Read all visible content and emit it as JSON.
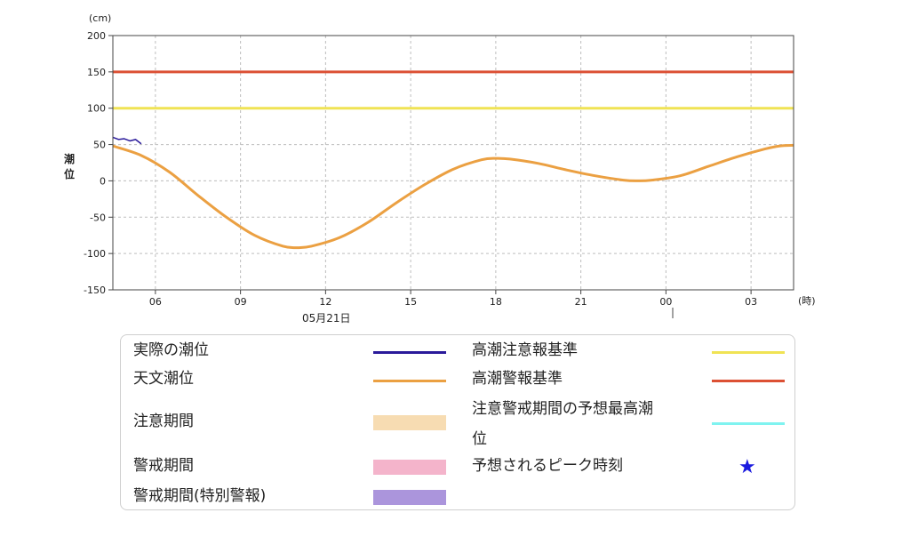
{
  "chart_data": {
    "type": "line",
    "y_unit": "(cm)",
    "x_unit": "(時)",
    "ylabel": "潮位",
    "ylim": [
      -150,
      200
    ],
    "yticks": [
      200,
      150,
      100,
      50,
      0,
      -50,
      -100,
      -150
    ],
    "x_range_hours": [
      4.5,
      28.5
    ],
    "xticks": [
      {
        "hour": 6,
        "label": "06"
      },
      {
        "hour": 9,
        "label": "09"
      },
      {
        "hour": 12,
        "label": "12"
      },
      {
        "hour": 15,
        "label": "15"
      },
      {
        "hour": 18,
        "label": "18"
      },
      {
        "hour": 21,
        "label": "21"
      },
      {
        "hour": 24,
        "label": "00"
      },
      {
        "hour": 27,
        "label": "03"
      }
    ],
    "date_label": "05月21日",
    "reference_lines": [
      {
        "name": "高潮注意報基準",
        "y": 100,
        "color": "#f0e354"
      },
      {
        "name": "高潮警報基準",
        "y": 150,
        "color": "#dc5034"
      }
    ],
    "series": [
      {
        "name": "天文潮位",
        "color": "#eba042",
        "x": [
          4.5,
          5.5,
          6.5,
          7.5,
          8.5,
          9.5,
          10.5,
          11.0,
          11.5,
          12.5,
          13.5,
          14.5,
          15.5,
          16.5,
          17.5,
          18.0,
          18.5,
          19.5,
          20.5,
          21.5,
          22.5,
          23.0,
          23.5,
          24.5,
          25.5,
          26.5,
          27.5,
          28.0,
          28.5
        ],
        "y": [
          48,
          35,
          12,
          -20,
          -50,
          -75,
          -90,
          -92,
          -90,
          -78,
          -57,
          -30,
          -5,
          16,
          29,
          31,
          30,
          24,
          15,
          7,
          1,
          0,
          1,
          7,
          20,
          33,
          44,
          48,
          49
        ]
      },
      {
        "name": "実際の潮位",
        "color": "#2a1a9a",
        "x": [
          4.5,
          4.7,
          4.9,
          5.1,
          5.3,
          5.5
        ],
        "y": [
          60,
          57,
          58,
          55,
          57,
          51
        ]
      }
    ]
  },
  "legend": {
    "items": [
      {
        "label": "実際の潮位",
        "color": "#2a1a9a",
        "kind": "line"
      },
      {
        "label": "天文潮位",
        "color": "#eba042",
        "kind": "line"
      },
      {
        "label": "注意期間",
        "color": "#f7dcb2",
        "kind": "block"
      },
      {
        "label": "警戒期間",
        "color": "#f4b4cb",
        "kind": "block"
      },
      {
        "label": "警戒期間(特別警報)",
        "color": "#ab95dc",
        "kind": "block"
      },
      {
        "label": "高潮注意報基準",
        "color": "#f0e354",
        "kind": "line"
      },
      {
        "label": "高潮警報基準",
        "color": "#dc5034",
        "kind": "line"
      },
      {
        "label": "注意警戒期間の予想最高潮",
        "label2": "位",
        "color": "#7ff3f0",
        "kind": "line"
      },
      {
        "label": "予想されるピーク時刻",
        "color": "#1a1adf",
        "kind": "star"
      }
    ]
  }
}
